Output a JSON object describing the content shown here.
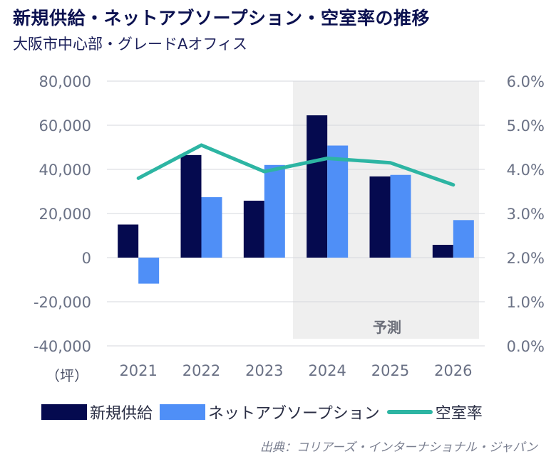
{
  "title": "新規供給・ネットアブソープション・空室率の推移",
  "subtitle": "大阪市中心部・グレードAオフィス",
  "unit_label": "（坪）",
  "source": "出典：コリアーズ・インターナショナル・ジャパン",
  "forecast_label": "予測",
  "colors": {
    "supply": "#050a4f",
    "absorption": "#4f8ff7",
    "vacancy": "#2db5a3",
    "forecast_bg": "#efefef"
  },
  "chart_data": {
    "type": "bar",
    "categories": [
      "2021",
      "2022",
      "2023",
      "2024",
      "2025",
      "2026"
    ],
    "series": [
      {
        "name": "新規供給",
        "type": "bar",
        "axis": "left",
        "values": [
          15000,
          46500,
          25800,
          64500,
          36800,
          5800
        ]
      },
      {
        "name": "ネットアブソープション",
        "type": "bar",
        "axis": "left",
        "values": [
          -11800,
          27400,
          42000,
          50800,
          37500,
          17000
        ]
      },
      {
        "name": "空室率",
        "type": "line",
        "axis": "right",
        "values": [
          3.8,
          4.55,
          3.95,
          4.25,
          4.15,
          3.65
        ]
      }
    ],
    "y_left": {
      "ylim": [
        -40000,
        80000
      ],
      "ticks": [
        "80,000",
        "60,000",
        "40,000",
        "20,000",
        "0",
        "-20,000",
        "-40,000"
      ]
    },
    "y_right": {
      "ylim": [
        0,
        6
      ],
      "ticks": [
        "6.0%",
        "5.0%",
        "4.0%",
        "3.0%",
        "2.0%",
        "1.0%",
        "0.0%"
      ]
    },
    "forecast_start": "2024",
    "grid": "horizontal",
    "legend_placement": "bottom"
  }
}
